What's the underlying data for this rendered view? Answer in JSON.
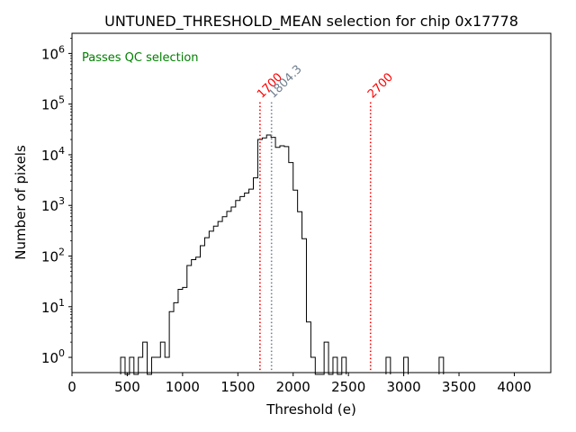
{
  "chart_data": {
    "type": "histogram",
    "title": "UNTUNED_THRESHOLD_MEAN selection for chip 0x17778",
    "xlabel": "Threshold (e)",
    "ylabel": "Number of pixels",
    "xlim": [
      0,
      4330
    ],
    "ylim": [
      0.5,
      2500000
    ],
    "yscale": "log",
    "grid": false,
    "xticks": [
      0,
      500,
      1000,
      1500,
      2000,
      2500,
      3000,
      3500,
      4000
    ],
    "xtick_labels": [
      "0",
      "500",
      "1000",
      "1500",
      "2000",
      "2500",
      "3000",
      "3500",
      "4000"
    ],
    "yticks": [
      1,
      10,
      100,
      1000,
      10000,
      100000,
      1000000
    ],
    "ytick_base": "10",
    "ytick_exponents": [
      "0",
      "1",
      "2",
      "3",
      "4",
      "5",
      "6"
    ],
    "bin_width": 40,
    "bins": [
      [
        440,
        1
      ],
      [
        480,
        0
      ],
      [
        520,
        1
      ],
      [
        560,
        0
      ],
      [
        600,
        1
      ],
      [
        640,
        2
      ],
      [
        680,
        0
      ],
      [
        720,
        1
      ],
      [
        760,
        1
      ],
      [
        800,
        2
      ],
      [
        840,
        1
      ],
      [
        880,
        8
      ],
      [
        920,
        12
      ],
      [
        960,
        22
      ],
      [
        1000,
        24
      ],
      [
        1040,
        65
      ],
      [
        1080,
        85
      ],
      [
        1120,
        95
      ],
      [
        1160,
        160
      ],
      [
        1200,
        230
      ],
      [
        1240,
        310
      ],
      [
        1280,
        390
      ],
      [
        1320,
        480
      ],
      [
        1360,
        600
      ],
      [
        1400,
        760
      ],
      [
        1440,
        930
      ],
      [
        1480,
        1250
      ],
      [
        1520,
        1500
      ],
      [
        1560,
        1750
      ],
      [
        1600,
        2100
      ],
      [
        1640,
        3500
      ],
      [
        1680,
        20000
      ],
      [
        1720,
        21500
      ],
      [
        1760,
        24500
      ],
      [
        1800,
        22000
      ],
      [
        1840,
        14000
      ],
      [
        1880,
        15000
      ],
      [
        1920,
        14500
      ],
      [
        1960,
        7000
      ],
      [
        2000,
        2000
      ],
      [
        2040,
        750
      ],
      [
        2080,
        220
      ],
      [
        2120,
        5
      ],
      [
        2160,
        1
      ],
      [
        2200,
        0
      ],
      [
        2240,
        0
      ],
      [
        2280,
        2
      ],
      [
        2320,
        0
      ],
      [
        2360,
        1
      ],
      [
        2400,
        0
      ],
      [
        2440,
        1
      ]
    ],
    "outlier_bins": [
      [
        2840,
        1
      ],
      [
        3000,
        1
      ],
      [
        3320,
        1
      ]
    ],
    "vlines": [
      {
        "x": 1700,
        "label": "1700",
        "color": "#ff0000",
        "style": "dotted"
      },
      {
        "x": 1804.3,
        "label": "1804.3",
        "color": "#708090",
        "style": "dotted"
      },
      {
        "x": 2700,
        "label": "2700",
        "color": "#ff0000",
        "style": "dotted"
      }
    ],
    "annotation": {
      "text": "Passes QC selection",
      "color": "#008000",
      "placement": "top-left"
    },
    "line_color": "#000000"
  }
}
